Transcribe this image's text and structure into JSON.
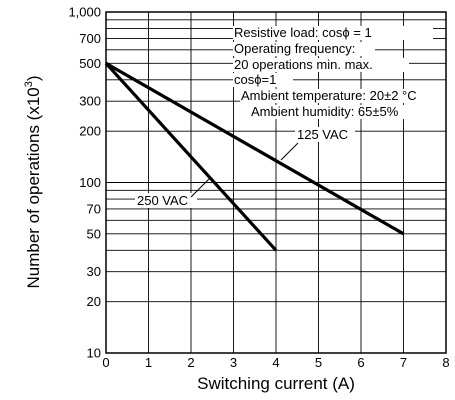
{
  "chart_data": {
    "type": "line",
    "title": "",
    "xlabel": "Switching current (A)",
    "ylabel": "Number of operations  (x10",
    "ylabel_sup": "3",
    "ylabel_close": ")",
    "xlim": [
      0,
      8
    ],
    "ylim": [
      10,
      1000
    ],
    "yscale": "log",
    "grid": true,
    "x_ticks": [
      0,
      1,
      2,
      3,
      4,
      5,
      6,
      7,
      8
    ],
    "x_tick_labels": [
      "0",
      "1",
      "2",
      "3",
      "4",
      "5",
      "6",
      "7",
      "8"
    ],
    "y_ticks": [
      10,
      20,
      30,
      50,
      70,
      100,
      200,
      300,
      500,
      700,
      1000
    ],
    "y_tick_labels": [
      "10",
      "20",
      "30",
      "50",
      "70",
      "100",
      "200",
      "300",
      "500",
      "700",
      "1,000"
    ],
    "y_minor_gridlines": [
      40,
      60,
      80,
      90,
      400,
      600,
      800,
      900
    ],
    "series": [
      {
        "name": "125 VAC",
        "x": [
          0,
          7
        ],
        "y": [
          500,
          50
        ]
      },
      {
        "name": "250 VAC",
        "x": [
          0,
          4
        ],
        "y": [
          500,
          40
        ]
      }
    ],
    "notes": [
      "Resistive load: cosϕ = 1",
      "Operating frequency:",
      "20 operations min. max.",
      "cosϕ=1",
      "Ambient temperature: 20±2 °C",
      "Ambient humidity: 65±5%"
    ],
    "colors": {
      "line": "#000000",
      "grid": "#000000",
      "background": "#ffffff"
    }
  }
}
